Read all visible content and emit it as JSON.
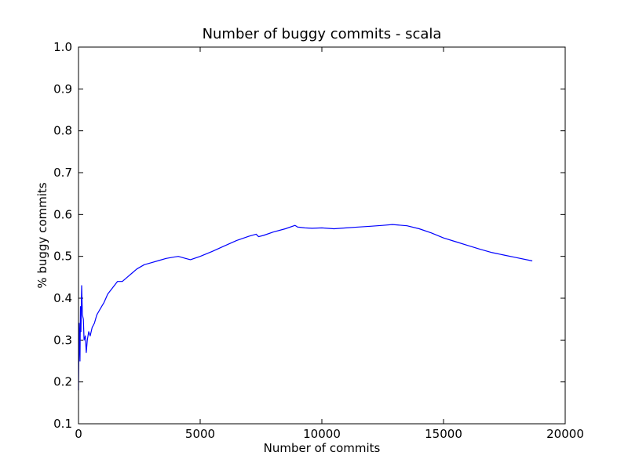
{
  "chart_data": {
    "type": "line",
    "title": "Number of buggy commits - scala",
    "xlabel": "Number of commits",
    "ylabel": "% buggy commits",
    "xlim": [
      0,
      20000
    ],
    "ylim": [
      0.1,
      1.0
    ],
    "xticks": [
      0,
      5000,
      10000,
      15000,
      20000
    ],
    "yticks": [
      0.1,
      0.2,
      0.3,
      0.4,
      0.5,
      0.6,
      0.7,
      0.8,
      0.9,
      1.0
    ],
    "xtick_labels": [
      "0",
      "5000",
      "10000",
      "15000",
      "20000"
    ],
    "ytick_labels": [
      "0.1",
      "0.2",
      "0.3",
      "0.4",
      "0.5",
      "0.6",
      "0.7",
      "0.8",
      "0.9",
      "1.0"
    ],
    "grid": false,
    "series": [
      {
        "color": "#0000ff",
        "x": [
          0,
          30,
          60,
          80,
          100,
          130,
          160,
          200,
          230,
          280,
          320,
          360,
          420,
          480,
          560,
          650,
          750,
          850,
          950,
          1050,
          1200,
          1400,
          1600,
          1800,
          2000,
          2200,
          2400,
          2700,
          3000,
          3300,
          3600,
          3900,
          4100,
          4400,
          4600,
          5000,
          5500,
          6000,
          6500,
          7000,
          7300,
          7400,
          7600,
          8000,
          8500,
          8900,
          9000,
          9300,
          9600,
          10000,
          10500,
          11000,
          11500,
          12000,
          12500,
          12900,
          13500,
          14000,
          14500,
          15000,
          15500,
          16000,
          16500,
          17000,
          17500,
          18000,
          18500,
          18650
        ],
        "y": [
          0.18,
          0.34,
          0.25,
          0.38,
          0.32,
          0.43,
          0.36,
          0.35,
          0.3,
          0.31,
          0.27,
          0.3,
          0.32,
          0.31,
          0.33,
          0.34,
          0.36,
          0.37,
          0.38,
          0.39,
          0.41,
          0.425,
          0.44,
          0.44,
          0.45,
          0.46,
          0.47,
          0.48,
          0.485,
          0.49,
          0.495,
          0.498,
          0.5,
          0.495,
          0.492,
          0.5,
          0.512,
          0.525,
          0.538,
          0.548,
          0.553,
          0.547,
          0.55,
          0.558,
          0.566,
          0.574,
          0.57,
          0.568,
          0.567,
          0.568,
          0.566,
          0.568,
          0.57,
          0.572,
          0.574,
          0.576,
          0.573,
          0.566,
          0.556,
          0.544,
          0.535,
          0.526,
          0.517,
          0.509,
          0.503,
          0.497,
          0.491,
          0.489
        ]
      }
    ]
  }
}
